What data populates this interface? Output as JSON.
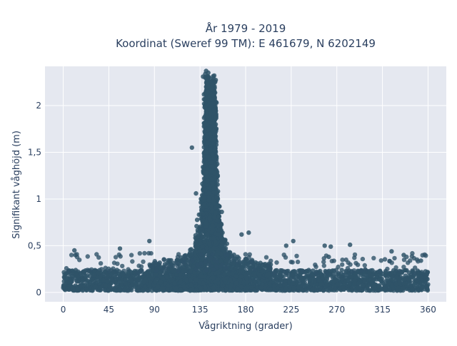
{
  "chart_data": {
    "type": "scatter",
    "title_line1": "År 1979 - 2019",
    "title_line2": "Koordinat (Sweref 99 TM): E 461679, N 6202149",
    "xlabel": "Vågriktning (grader)",
    "ylabel": "Signifikant våghöjd (m)",
    "xlim": [
      -18,
      378
    ],
    "ylim": [
      -0.1,
      2.42
    ],
    "x_ticks": [
      0,
      45,
      90,
      135,
      180,
      225,
      270,
      315,
      360
    ],
    "x_tick_labels": [
      "0",
      "45",
      "90",
      "135",
      "180",
      "225",
      "270",
      "315",
      "360"
    ],
    "y_ticks": [
      0,
      0.5,
      1,
      1.5,
      2
    ],
    "y_tick_labels": [
      "0",
      "0,5",
      "1",
      "1,5",
      "2"
    ],
    "grid": true,
    "legend": "none",
    "marker_color": "#2f5369",
    "plot_bg": "#e5e8f0",
    "point_cloud": {
      "baseline_band": {
        "x_range": [
          0,
          360
        ],
        "y_range": [
          0.0,
          0.3
        ]
      },
      "peak_direction": 145,
      "peak_max_height": 2.37,
      "notes_points": [
        {
          "x": 141,
          "y": 2.37
        },
        {
          "x": 138,
          "y": 2.31
        },
        {
          "x": 127,
          "y": 1.55
        },
        {
          "x": 131,
          "y": 1.06
        },
        {
          "x": 176,
          "y": 0.62
        },
        {
          "x": 183,
          "y": 0.64
        },
        {
          "x": 227,
          "y": 0.55
        },
        {
          "x": 258,
          "y": 0.5
        },
        {
          "x": 264,
          "y": 0.49
        },
        {
          "x": 283,
          "y": 0.51
        },
        {
          "x": 324,
          "y": 0.44
        },
        {
          "x": 336,
          "y": 0.4
        },
        {
          "x": 11,
          "y": 0.45
        },
        {
          "x": 12,
          "y": 0.4
        },
        {
          "x": 56,
          "y": 0.47
        },
        {
          "x": 85,
          "y": 0.55
        },
        {
          "x": 220,
          "y": 0.5
        },
        {
          "x": 262,
          "y": 0.38
        },
        {
          "x": 353,
          "y": 0.34
        }
      ]
    }
  }
}
